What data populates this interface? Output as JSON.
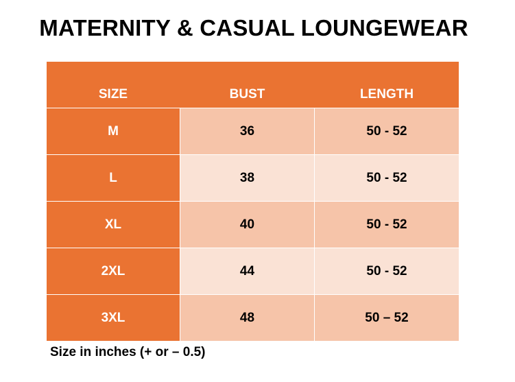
{
  "title": "MATERNITY & CASUAL LOUNGEWEAR",
  "table": {
    "headers": {
      "size": "SIZE",
      "bust": "BUST",
      "length": "LENGTH"
    },
    "rows": [
      {
        "size": "M",
        "bust": "36",
        "length": "50 - 52"
      },
      {
        "size": "L",
        "bust": "38",
        "length": "50 - 52"
      },
      {
        "size": "XL",
        "bust": "40",
        "length": "50 - 52"
      },
      {
        "size": "2XL",
        "bust": "44",
        "length": "50 - 52"
      },
      {
        "size": "3XL",
        "bust": "48",
        "length": "50 – 52"
      }
    ]
  },
  "note": "Size in inches (+ or – 0.5)",
  "colors": {
    "header_bg": "#ea7332",
    "row_dark": "#f6c4a9",
    "row_light": "#fae2d5"
  }
}
